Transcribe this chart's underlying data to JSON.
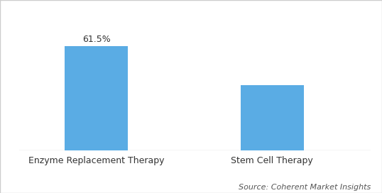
{
  "categories": [
    "Enzyme Replacement Therapy",
    "Stem Cell Therapy"
  ],
  "values": [
    61.5,
    38.5
  ],
  "bar_colors": [
    "#5aace4",
    "#5aace4"
  ],
  "bar_labels": [
    "61.5%",
    ""
  ],
  "bar_width": 0.18,
  "x_positions": [
    0.22,
    0.72
  ],
  "xlim": [
    0,
    1
  ],
  "ylim": [
    0,
    75
  ],
  "source_text": "Source: Coherent Market Insights",
  "background_color": "#ffffff",
  "bar_label_fontsize": 9,
  "tick_label_fontsize": 9,
  "source_fontsize": 8
}
